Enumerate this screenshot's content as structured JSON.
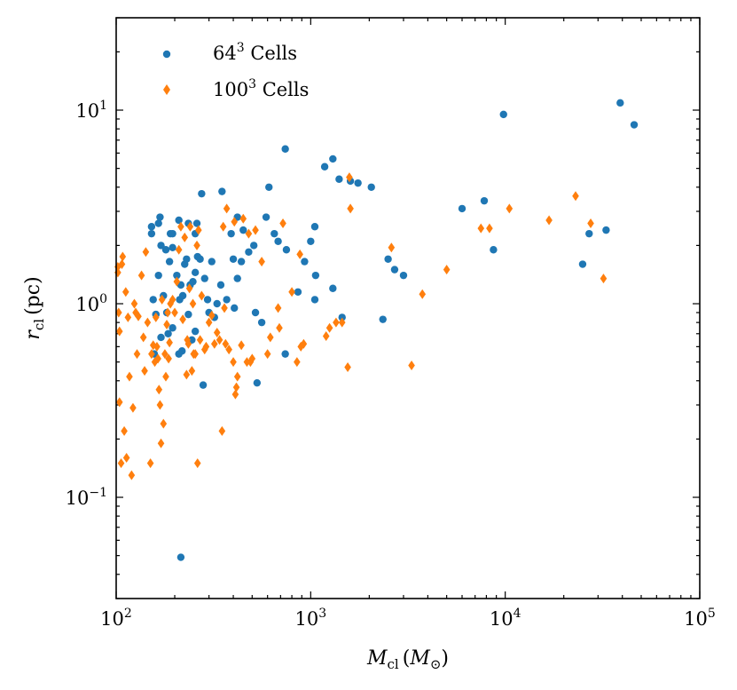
{
  "colors": {
    "series_64": "#1f77b4",
    "series_100": "#ff7f0e",
    "axis": "#000000"
  },
  "chart_data": {
    "type": "scatter",
    "title": "",
    "xlabel": {
      "main": "M",
      "sub": "cl",
      "paren_open": "(",
      "paren_main": "M",
      "paren_sub": "⊙",
      "paren_close": ")"
    },
    "ylabel": {
      "main": "r",
      "sub": "cl",
      "unit": "(pc)"
    },
    "xscale": "log",
    "yscale": "log",
    "xlim": [
      100,
      100000
    ],
    "ylim": [
      0.03,
      30
    ],
    "x_ticks": [
      {
        "value": 100,
        "base": "10",
        "exp": "2"
      },
      {
        "value": 1000,
        "base": "10",
        "exp": "3"
      },
      {
        "value": 10000,
        "base": "10",
        "exp": "4"
      },
      {
        "value": 100000,
        "base": "10",
        "exp": "5"
      }
    ],
    "y_ticks": [
      {
        "value": 0.1,
        "base": "10",
        "exp": "−1"
      },
      {
        "value": 1,
        "label": "10",
        "exp": "0"
      },
      {
        "value": 10,
        "base": "10",
        "exp": "1"
      }
    ],
    "legend": {
      "position": "top-left",
      "entries": [
        {
          "base": "64",
          "exp": "3",
          "suffix": " Cells",
          "marker": "circle"
        },
        {
          "base": "100",
          "exp": "3",
          "suffix": " Cells",
          "marker": "diamond"
        }
      ]
    },
    "series": [
      {
        "name": "64^3 Cells",
        "marker": "circle",
        "points": [
          [
            152,
            2.5
          ],
          [
            152,
            2.3
          ],
          [
            165,
            2.6
          ],
          [
            168,
            2.8
          ],
          [
            170,
            2.0
          ],
          [
            180,
            1.9
          ],
          [
            190,
            2.3
          ],
          [
            195,
            2.3
          ],
          [
            210,
            2.7
          ],
          [
            235,
            2.6
          ],
          [
            260,
            2.6
          ],
          [
            255,
            2.3
          ],
          [
            275,
            3.7
          ],
          [
            350,
            3.8
          ],
          [
            390,
            2.3
          ],
          [
            420,
            2.8
          ],
          [
            450,
            2.4
          ],
          [
            510,
            2.0
          ],
          [
            590,
            2.8
          ],
          [
            610,
            4.0
          ],
          [
            650,
            2.3
          ],
          [
            680,
            2.1
          ],
          [
            740,
            6.3
          ],
          [
            1180,
            5.1
          ],
          [
            1300,
            5.6
          ],
          [
            1400,
            4.4
          ],
          [
            1600,
            4.3
          ],
          [
            1750,
            4.2
          ],
          [
            2050,
            4.0
          ],
          [
            9800,
            9.5
          ],
          [
            39000,
            10.9
          ],
          [
            46000,
            8.4
          ],
          [
            6000,
            3.1
          ],
          [
            7800,
            3.4
          ],
          [
            8700,
            1.9
          ],
          [
            27000,
            2.3
          ],
          [
            33000,
            2.4
          ],
          [
            25000,
            1.6
          ],
          [
            2500,
            1.7
          ],
          [
            2700,
            1.5
          ],
          [
            3000,
            1.4
          ],
          [
            2350,
            0.83
          ],
          [
            1000,
            2.1
          ],
          [
            1050,
            2.5
          ],
          [
            1060,
            1.4
          ],
          [
            1050,
            1.05
          ],
          [
            1300,
            1.2
          ],
          [
            930,
            1.65
          ],
          [
            860,
            1.15
          ],
          [
            750,
            1.9
          ],
          [
            155,
            1.05
          ],
          [
            160,
            0.88
          ],
          [
            165,
            1.4
          ],
          [
            175,
            1.1
          ],
          [
            182,
            0.9
          ],
          [
            188,
            1.65
          ],
          [
            195,
            1.95
          ],
          [
            205,
            1.4
          ],
          [
            212,
            1.05
          ],
          [
            215,
            1.25
          ],
          [
            220,
            1.1
          ],
          [
            225,
            1.6
          ],
          [
            230,
            1.7
          ],
          [
            235,
            0.88
          ],
          [
            240,
            1.25
          ],
          [
            248,
            1.3
          ],
          [
            255,
            1.45
          ],
          [
            262,
            1.75
          ],
          [
            270,
            1.7
          ],
          [
            285,
            1.35
          ],
          [
            295,
            1.05
          ],
          [
            300,
            0.9
          ],
          [
            310,
            1.65
          ],
          [
            320,
            0.85
          ],
          [
            330,
            1.0
          ],
          [
            345,
            1.25
          ],
          [
            370,
            1.05
          ],
          [
            400,
            1.7
          ],
          [
            405,
            0.95
          ],
          [
            420,
            1.35
          ],
          [
            440,
            1.65
          ],
          [
            480,
            1.85
          ],
          [
            520,
            0.9
          ],
          [
            560,
            0.8
          ],
          [
            530,
            0.39
          ],
          [
            157,
            0.55
          ],
          [
            160,
            0.88
          ],
          [
            170,
            0.67
          ],
          [
            185,
            0.7
          ],
          [
            195,
            0.75
          ],
          [
            210,
            0.55
          ],
          [
            218,
            0.57
          ],
          [
            245,
            0.65
          ],
          [
            255,
            0.72
          ],
          [
            280,
            0.38
          ],
          [
            740,
            0.55
          ],
          [
            1450,
            0.85
          ],
          [
            215,
            0.049
          ]
        ]
      },
      {
        "name": "100^3 Cells",
        "marker": "diamond",
        "points": [
          [
            102,
            1.55
          ],
          [
            102,
            1.45
          ],
          [
            103,
            0.9
          ],
          [
            104,
            0.72
          ],
          [
            104,
            0.31
          ],
          [
            106,
            0.15
          ],
          [
            107,
            1.6
          ],
          [
            108,
            1.75
          ],
          [
            110,
            0.22
          ],
          [
            112,
            1.15
          ],
          [
            113,
            0.16
          ],
          [
            115,
            0.85
          ],
          [
            117,
            0.42
          ],
          [
            120,
            0.13
          ],
          [
            122,
            0.29
          ],
          [
            124,
            1.0
          ],
          [
            126,
            0.9
          ],
          [
            128,
            0.55
          ],
          [
            130,
            0.86
          ],
          [
            135,
            1.4
          ],
          [
            138,
            0.67
          ],
          [
            140,
            0.45
          ],
          [
            142,
            1.85
          ],
          [
            145,
            0.8
          ],
          [
            150,
            0.15
          ],
          [
            152,
            0.55
          ],
          [
            155,
            0.61
          ],
          [
            158,
            0.5
          ],
          [
            160,
            0.85
          ],
          [
            162,
            0.6
          ],
          [
            164,
            0.52
          ],
          [
            166,
            0.36
          ],
          [
            168,
            0.3
          ],
          [
            170,
            0.19
          ],
          [
            172,
            1.05
          ],
          [
            175,
            0.24
          ],
          [
            178,
            0.55
          ],
          [
            180,
            0.42
          ],
          [
            182,
            0.78
          ],
          [
            184,
            0.9
          ],
          [
            186,
            0.52
          ],
          [
            188,
            0.63
          ],
          [
            190,
            1.0
          ],
          [
            195,
            1.05
          ],
          [
            200,
            0.9
          ],
          [
            205,
            1.3
          ],
          [
            210,
            1.9
          ],
          [
            215,
            2.5
          ],
          [
            220,
            0.83
          ],
          [
            225,
            2.2
          ],
          [
            230,
            0.43
          ],
          [
            232,
            0.65
          ],
          [
            235,
            0.62
          ],
          [
            238,
            1.2
          ],
          [
            240,
            2.5
          ],
          [
            245,
            0.45
          ],
          [
            248,
            1.0
          ],
          [
            250,
            0.55
          ],
          [
            255,
            0.55
          ],
          [
            260,
            2.0
          ],
          [
            262,
            0.15
          ],
          [
            265,
            2.4
          ],
          [
            270,
            0.65
          ],
          [
            275,
            1.1
          ],
          [
            285,
            0.58
          ],
          [
            290,
            0.6
          ],
          [
            300,
            0.8
          ],
          [
            310,
            0.87
          ],
          [
            320,
            0.62
          ],
          [
            330,
            0.71
          ],
          [
            340,
            0.65
          ],
          [
            350,
            0.22
          ],
          [
            355,
            2.5
          ],
          [
            360,
            0.95
          ],
          [
            365,
            0.62
          ],
          [
            370,
            3.1
          ],
          [
            380,
            0.58
          ],
          [
            400,
            0.5
          ],
          [
            405,
            2.65
          ],
          [
            410,
            0.34
          ],
          [
            415,
            0.37
          ],
          [
            420,
            0.42
          ],
          [
            440,
            0.61
          ],
          [
            450,
            2.75
          ],
          [
            470,
            0.5
          ],
          [
            480,
            2.3
          ],
          [
            490,
            0.5
          ],
          [
            500,
            0.52
          ],
          [
            520,
            2.4
          ],
          [
            560,
            1.65
          ],
          [
            600,
            0.55
          ],
          [
            620,
            0.67
          ],
          [
            680,
            0.95
          ],
          [
            690,
            0.75
          ],
          [
            720,
            2.6
          ],
          [
            800,
            1.15
          ],
          [
            850,
            0.5
          ],
          [
            880,
            1.8
          ],
          [
            890,
            0.6
          ],
          [
            920,
            0.62
          ],
          [
            1200,
            0.68
          ],
          [
            1250,
            0.75
          ],
          [
            1350,
            0.8
          ],
          [
            1450,
            0.8
          ],
          [
            1550,
            0.47
          ],
          [
            1600,
            3.1
          ],
          [
            1580,
            4.5
          ],
          [
            2600,
            1.95
          ],
          [
            3300,
            0.48
          ],
          [
            3750,
            1.12
          ],
          [
            5000,
            1.5
          ],
          [
            7500,
            2.45
          ],
          [
            8300,
            2.45
          ],
          [
            10500,
            3.1
          ],
          [
            16800,
            2.7
          ],
          [
            23000,
            3.6
          ],
          [
            27500,
            2.6
          ],
          [
            32000,
            1.35
          ]
        ]
      }
    ]
  }
}
